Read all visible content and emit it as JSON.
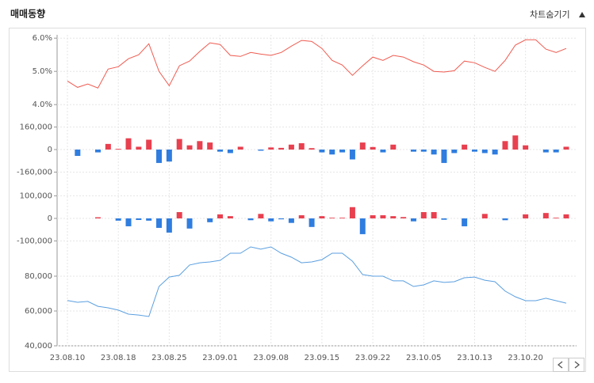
{
  "header": {
    "title": "매매동향",
    "toggle": "차트숨기기"
  },
  "chart_data": [
    {
      "type": "line",
      "color": "#ef5b50",
      "values": [
        4.71,
        4.52,
        4.62,
        4.5,
        5.07,
        5.14,
        5.38,
        5.5,
        5.83,
        5.0,
        4.57,
        5.17,
        5.31,
        5.6,
        5.86,
        5.81,
        5.48,
        5.45,
        5.57,
        5.52,
        5.48,
        5.57,
        5.76,
        5.93,
        5.9,
        5.69,
        5.33,
        5.19,
        4.88,
        5.17,
        5.43,
        5.33,
        5.48,
        5.43,
        5.29,
        5.19,
        5.0,
        4.98,
        5.02,
        5.31,
        5.26,
        5.12,
        5.0,
        5.33,
        5.79,
        5.95,
        5.95,
        5.67,
        5.57,
        5.69
      ],
      "ylim": [
        3.8,
        6.1
      ],
      "yticks": [
        {
          "value": 4,
          "label": "4.0%"
        },
        {
          "value": 5,
          "label": "5.0%"
        },
        {
          "value": 6,
          "label": "6.0%"
        }
      ]
    },
    {
      "type": "bar",
      "pos_color": "#e8404f",
      "neg_color": "#2f7ddf",
      "values": [
        0,
        -45000,
        0,
        -20000,
        40000,
        5000,
        80000,
        20000,
        70000,
        -95000,
        -85000,
        75000,
        30000,
        60000,
        50000,
        -15000,
        -25000,
        20000,
        0,
        -8000,
        15000,
        12000,
        35000,
        45000,
        10000,
        -20000,
        -35000,
        -20000,
        -70000,
        50000,
        18000,
        -20000,
        35000,
        0,
        -15000,
        -15000,
        -35000,
        -95000,
        -25000,
        35000,
        -15000,
        -25000,
        -35000,
        60000,
        100000,
        30000,
        0,
        -20000,
        -20000,
        20000
      ],
      "ylim": [
        -220000,
        220000
      ],
      "yticks": [
        {
          "value": -160000,
          "label": "-160,000"
        },
        0,
        {
          "value": 160000,
          "label": "160,000"
        }
      ]
    },
    {
      "type": "bar",
      "pos_color": "#e8404f",
      "neg_color": "#2f7ddf",
      "values": [
        0,
        0,
        0,
        5000,
        0,
        -10000,
        -35000,
        -7000,
        -10000,
        -42000,
        -63000,
        28000,
        -45000,
        0,
        -17000,
        18000,
        10000,
        0,
        -8000,
        20000,
        -13000,
        -4000,
        -20000,
        14000,
        -38000,
        10000,
        3000,
        3000,
        50000,
        -70000,
        14000,
        14000,
        10000,
        6000,
        -13000,
        28000,
        28000,
        -6000,
        0,
        -35000,
        0,
        20000,
        0,
        -8000,
        0,
        18000,
        0,
        24000,
        3000,
        18000
      ],
      "ylim": [
        -130000,
        130000
      ],
      "yticks": [
        {
          "value": -100000,
          "label": "-100,000"
        },
        0,
        {
          "value": 100000,
          "label": "100,000"
        }
      ]
    },
    {
      "type": "line",
      "color": "#5b9fe0",
      "values": [
        66000,
        65000,
        65500,
        62700,
        61800,
        60500,
        58200,
        57700,
        56800,
        74100,
        79500,
        80500,
        86400,
        87700,
        88200,
        89100,
        93200,
        93200,
        96800,
        95500,
        96800,
        93200,
        90900,
        87700,
        88200,
        89500,
        93200,
        93200,
        88600,
        80900,
        80000,
        80000,
        77300,
        77300,
        74100,
        75000,
        77300,
        76400,
        76800,
        79100,
        79500,
        77700,
        76800,
        71400,
        68200,
        65900,
        65900,
        67300,
        65900,
        64500
      ],
      "ylim": [
        40000,
        97000
      ],
      "yticks": [
        {
          "value": 40000,
          "label": "40,000"
        },
        {
          "value": 60000,
          "label": "60,000"
        },
        {
          "value": 80000,
          "label": "80,000"
        }
      ],
      "categories": [
        "23.08.10",
        null,
        null,
        null,
        null,
        "23.08.18",
        null,
        null,
        null,
        null,
        "23.08.25",
        null,
        null,
        null,
        null,
        "23.09.01",
        null,
        null,
        null,
        null,
        "23.09.08",
        null,
        null,
        null,
        null,
        "23.09.15",
        null,
        null,
        null,
        null,
        "23.09.22",
        null,
        null,
        null,
        null,
        "23.10.05",
        null,
        null,
        null,
        null,
        "23.10.13",
        null,
        null,
        null,
        null,
        "23.10.20",
        null,
        null,
        null,
        null
      ]
    }
  ]
}
